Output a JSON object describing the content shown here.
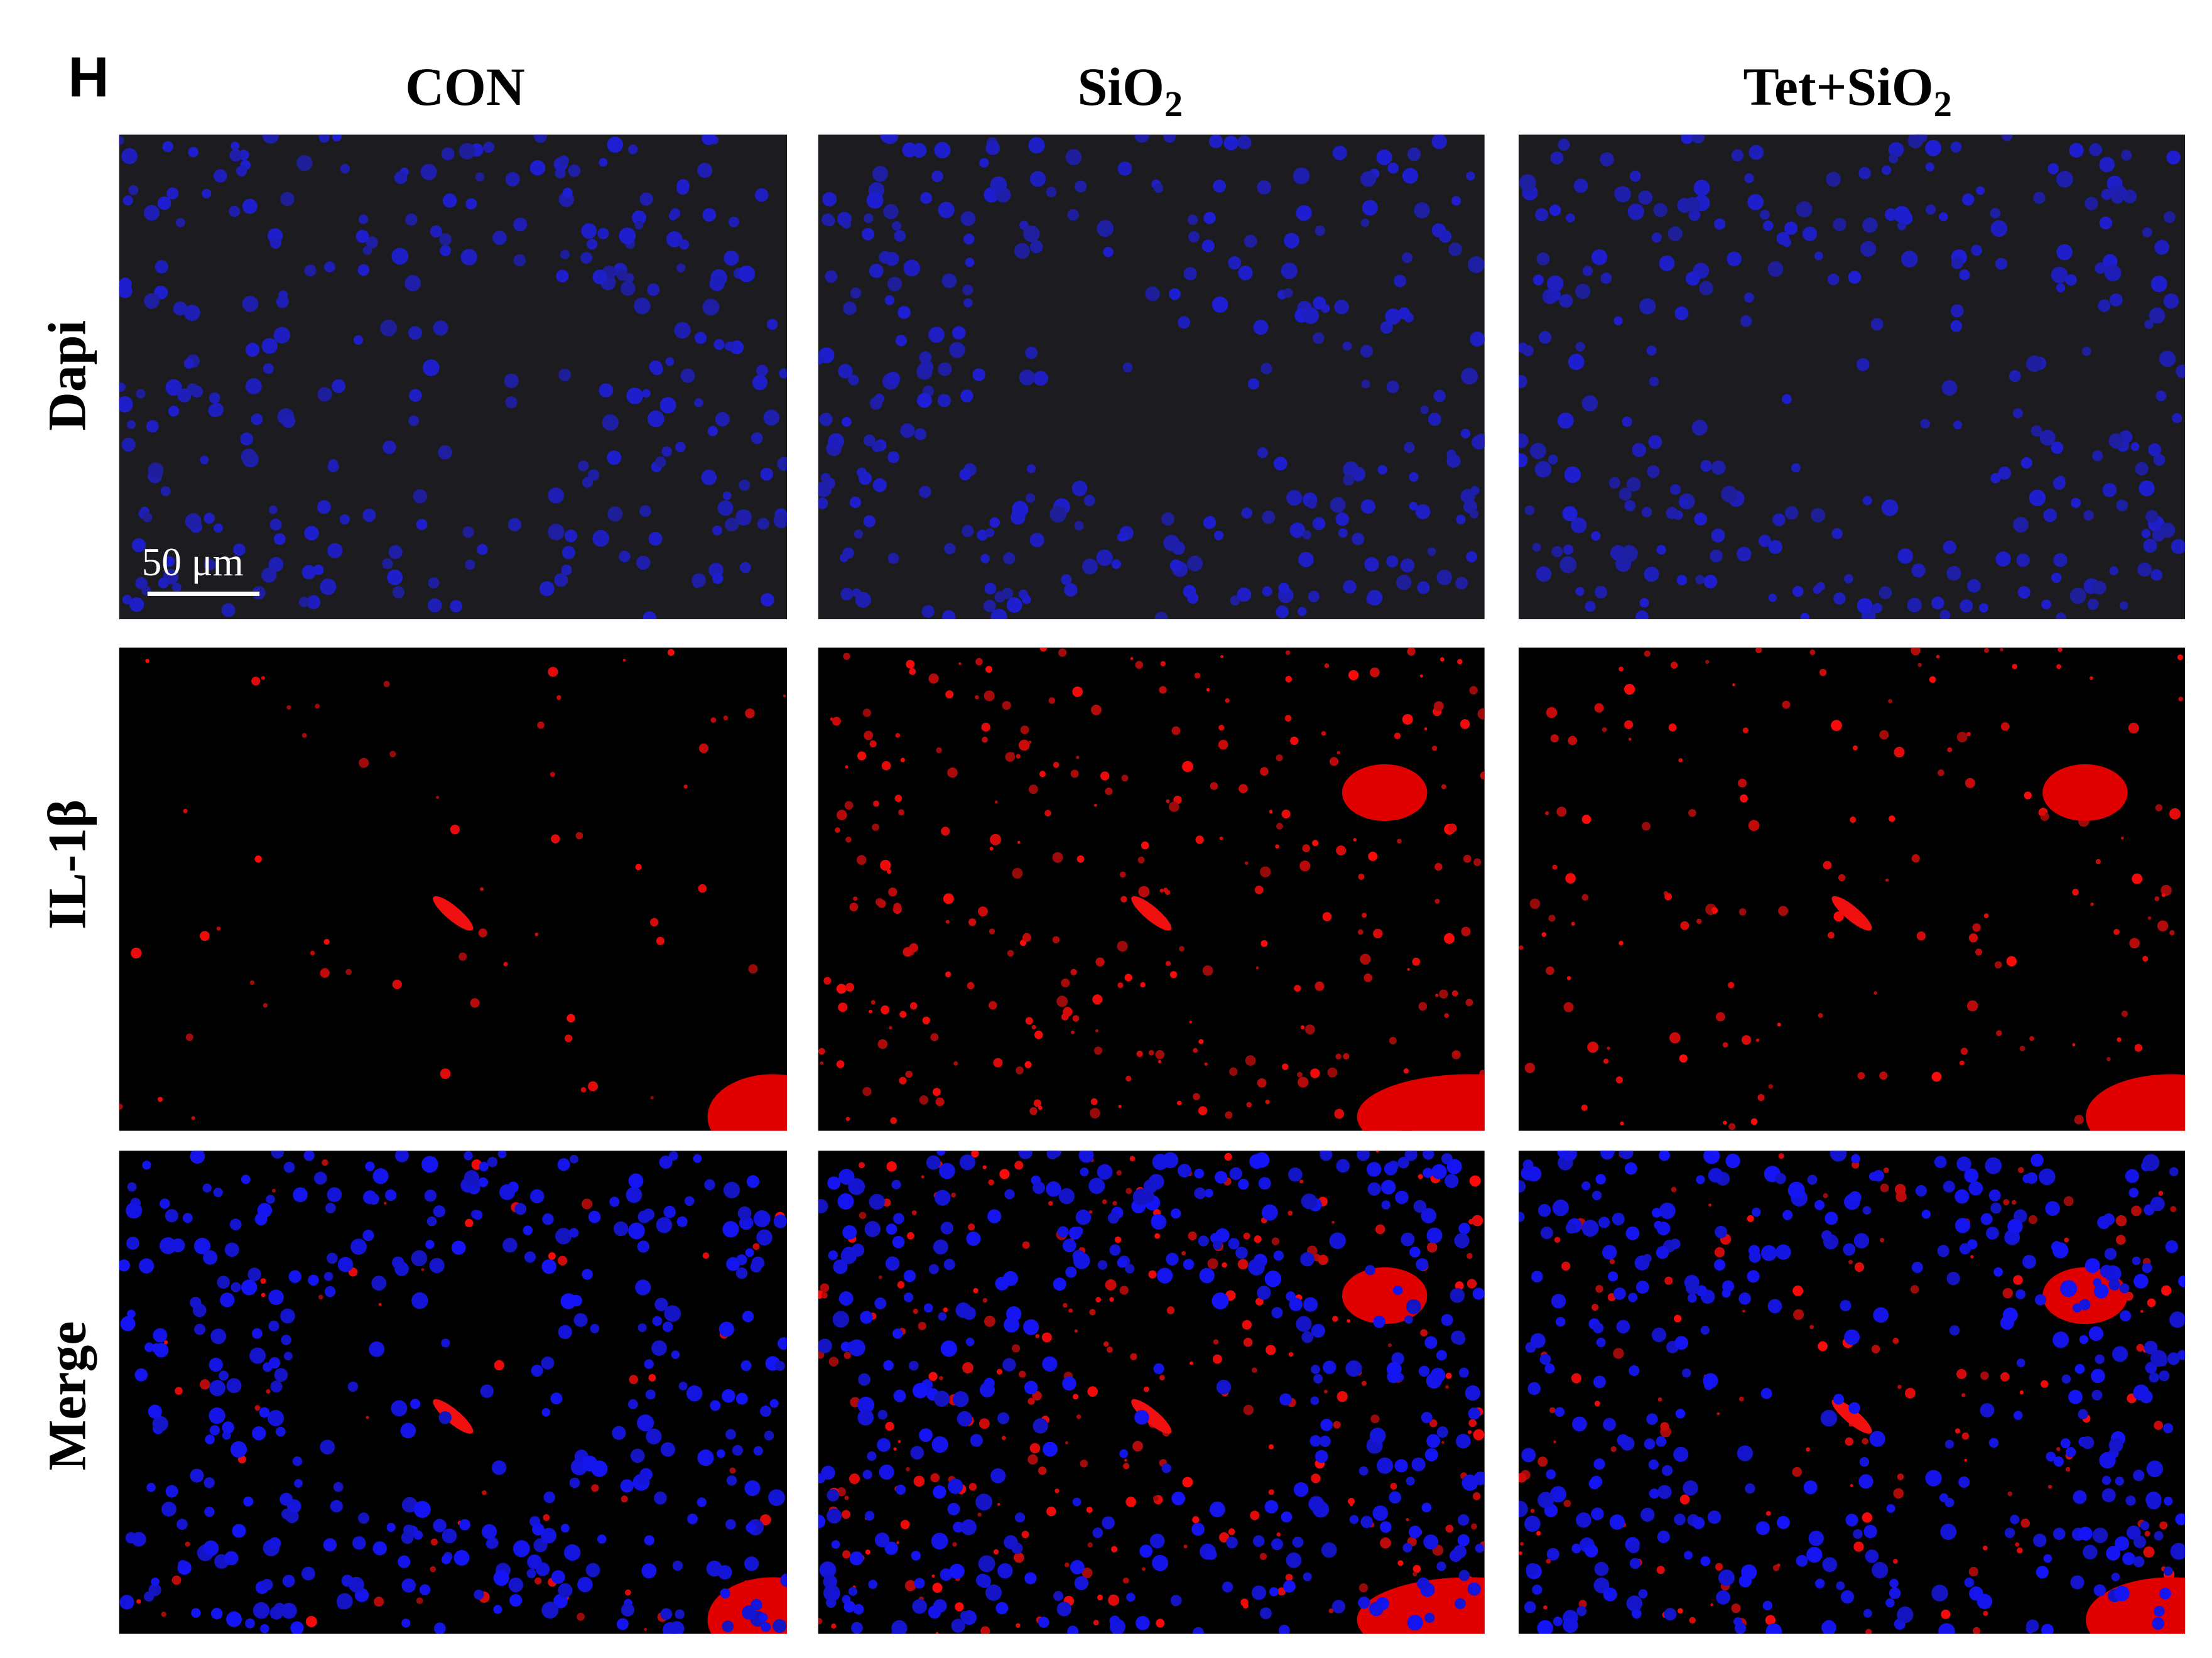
{
  "panel_label": "H",
  "columns": [
    {
      "text": "CON"
    },
    {
      "text": "SiO",
      "sub": "2"
    },
    {
      "text": "Tet+SiO",
      "sub": "2"
    }
  ],
  "rows": [
    "Dapi",
    "IL-1β",
    "Merge"
  ],
  "scale_bar": "50 μm"
}
